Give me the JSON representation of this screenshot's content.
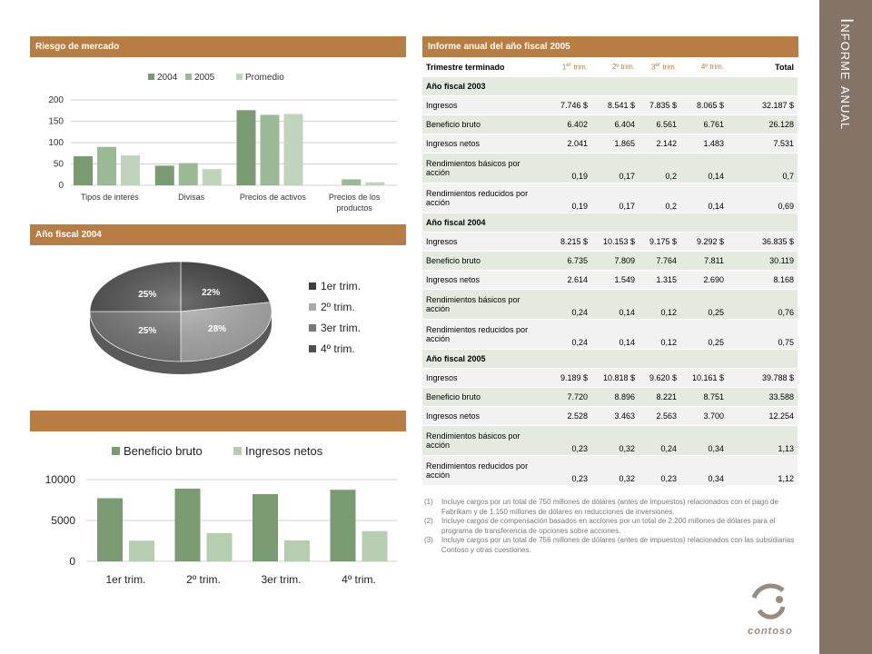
{
  "sidebar": {
    "title": "Informe anual"
  },
  "market_risk": {
    "header": "Riesgo de mercado",
    "legend": [
      "2004",
      "2005",
      "Promedio"
    ],
    "colors": [
      "#7a9a72",
      "#9bb995",
      "#c0d4bc"
    ],
    "y_ticks": [
      "200",
      "150",
      "100",
      "50",
      "0"
    ],
    "categories": [
      "Tipos de interés",
      "Divisas",
      "Precios de activos",
      "Precios de los productos"
    ]
  },
  "fy2004": {
    "header": "Año fiscal 2004",
    "legend": [
      "1er trim.",
      "2º trim.",
      "3er trim.",
      "4º trim."
    ]
  },
  "bottom_chart": {
    "header": "",
    "legend": [
      "Beneficio bruto",
      "Ingresos netos"
    ],
    "y_ticks": [
      "10000",
      "5000",
      "0"
    ],
    "categories": [
      "1er trim.",
      "2º trim.",
      "3er trim.",
      "4º trim."
    ]
  },
  "chart_data": [
    {
      "type": "bar",
      "title": "",
      "categories": [
        "Tipos de interés",
        "Divisas",
        "Precios de activos",
        "Precios de los productos"
      ],
      "series": [
        {
          "name": "2004",
          "values": [
            68,
            46,
            176,
            0
          ]
        },
        {
          "name": "2005",
          "values": [
            90,
            52,
            165,
            14
          ]
        },
        {
          "name": "Promedio",
          "values": [
            70,
            38,
            167,
            7
          ]
        }
      ],
      "ylim": [
        0,
        200
      ],
      "grid": true,
      "legend_position": "top"
    },
    {
      "type": "pie",
      "title": "",
      "categories": [
        "1er trim.",
        "2º trim.",
        "3er trim.",
        "4º trim."
      ],
      "values": [
        22,
        28,
        25,
        25
      ],
      "labels": [
        "22%",
        "28%",
        "25%",
        "25%"
      ],
      "colors": [
        "#3d3d3d",
        "#aaaaaa",
        "#777777",
        "#4f4f4f"
      ],
      "legend_position": "right"
    },
    {
      "type": "bar",
      "title": "",
      "categories": [
        "1er trim.",
        "2º trim.",
        "3er trim.",
        "4º trim."
      ],
      "series": [
        {
          "name": "Beneficio bruto",
          "values": [
            7720,
            8896,
            8221,
            8751
          ]
        },
        {
          "name": "Ingresos netos",
          "values": [
            2528,
            3463,
            2563,
            3700
          ]
        }
      ],
      "ylim": [
        0,
        10000
      ],
      "grid": true,
      "legend_position": "top"
    }
  ],
  "report": {
    "header": "Informe anual del año fiscal 2005",
    "col_headers": {
      "label": "Trimestre terminado",
      "q1": "1",
      "q1_sup": "er",
      "q1_rest": " trim.",
      "q2": "2º trim.",
      "q3": "3",
      "q3_sup": "er",
      "q3_rest": " trim.",
      "q4": "4º trim.",
      "total": "Total"
    },
    "sections": [
      {
        "title": "Año fiscal 2003",
        "rows": [
          {
            "label": "Ingresos",
            "values": [
              "7.746 $",
              "8.541 $",
              "7.835 $",
              "8.065 $",
              "32.187 $"
            ]
          },
          {
            "label": "Beneficio bruto",
            "values": [
              "6.402",
              "6.404",
              "6.561",
              "6.761",
              "26.128"
            ]
          },
          {
            "label": "Ingresos netos",
            "values": [
              "2.041",
              "1.865",
              "2.142",
              "1.483",
              "7.531"
            ]
          },
          {
            "label": "Rendimientos básicos por acción",
            "values": [
              "0,19",
              "0,17",
              "0,2",
              "0,14",
              "0,7"
            ]
          },
          {
            "label": "Rendimientos reducidos por acción",
            "values": [
              "0,19",
              "0,17",
              "0,2",
              "0,14",
              "0,69"
            ]
          }
        ]
      },
      {
        "title": "Año fiscal 2004",
        "rows": [
          {
            "label": "Ingresos",
            "values": [
              "8.215 $",
              "10.153 $",
              "9.175 $",
              "9.292 $",
              "36.835 $"
            ]
          },
          {
            "label": "Beneficio bruto",
            "values": [
              "6.735",
              "7.809",
              "7.764",
              "7.811",
              "30.119"
            ]
          },
          {
            "label": "Ingresos netos",
            "values": [
              "2.614",
              "1.549",
              "1.315",
              "2.690",
              "8.168"
            ]
          },
          {
            "label": "Rendimientos básicos por acción",
            "values": [
              "0,24",
              "0,14",
              "0,12",
              "0,25",
              "0,76"
            ]
          },
          {
            "label": "Rendimientos reducidos por acción",
            "values": [
              "0,24",
              "0,14",
              "0,12",
              "0,25",
              "0,75"
            ]
          }
        ]
      },
      {
        "title": "Año fiscal 2005",
        "rows": [
          {
            "label": "Ingresos",
            "values": [
              "9.189 $",
              "10.818 $",
              "9.620 $",
              "10.161 $",
              "39.788 $"
            ]
          },
          {
            "label": "Beneficio bruto",
            "values": [
              "7.720",
              "8.896",
              "8.221",
              "8.751",
              "33.588"
            ]
          },
          {
            "label": "Ingresos netos",
            "values": [
              "2.528",
              "3.463",
              "2.563",
              "3.700",
              "12.254"
            ]
          },
          {
            "label": "Rendimientos básicos por acción",
            "values": [
              "0,23",
              "0,32",
              "0,24",
              "0,34",
              "1,13"
            ]
          },
          {
            "label": "Rendimientos reducidos por acción",
            "values": [
              "0,23",
              "0,32",
              "0,23",
              "0,34",
              "1,12"
            ]
          }
        ]
      }
    ],
    "notes": [
      {
        "num": "(1)",
        "text": "Incluye cargos por un total de 750 millones de dólares (antes de impuestos) relacionados con el pago de Fabrikam y de 1.150 millones de dólares en reducciones de inversiones."
      },
      {
        "num": "(2)",
        "text": "Incluye cargos de compensación basados en acciones por un total de 2.200 millones de dólares para el programa de transferencia de opciones sobre acciones."
      },
      {
        "num": "(3)",
        "text": "Incluye cargos por un total de 756 millones de dólares (antes de impuestos) relacionados con las subsidiarias Contoso y otras cuestiones."
      }
    ]
  },
  "logo": {
    "text": "contoso"
  }
}
